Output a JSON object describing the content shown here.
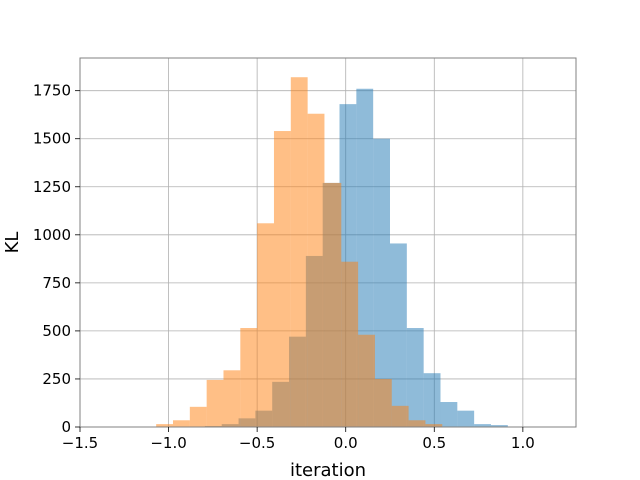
{
  "chart_data": {
    "type": "histogram",
    "xlabel": "iteration",
    "ylabel": "KL",
    "xlim": [
      -1.5,
      1.3
    ],
    "ylim": [
      0,
      1920
    ],
    "grid": true,
    "x_ticks": [
      -1.5,
      -1.0,
      -0.5,
      0.0,
      0.5,
      1.0
    ],
    "x_tick_labels": [
      "−1.5",
      "−1.0",
      "−0.5",
      "0.0",
      "0.5",
      "1.0"
    ],
    "y_ticks": [
      0,
      250,
      500,
      750,
      1000,
      1250,
      1500,
      1750
    ],
    "y_tick_labels": [
      "0",
      "250",
      "500",
      "750",
      "1000",
      "1250",
      "1500",
      "1750"
    ],
    "bins_alpha": 0.5,
    "series": [
      {
        "color": "#1f77b4",
        "bin_width": 0.095,
        "bin_starts": [
          -0.795,
          -0.7,
          -0.605,
          -0.51,
          -0.415,
          -0.32,
          -0.225,
          -0.13,
          -0.035,
          0.06,
          0.155,
          0.25,
          0.345,
          0.44,
          0.535,
          0.63,
          0.725,
          0.82
        ],
        "values": [
          5,
          15,
          45,
          85,
          235,
          470,
          890,
          1270,
          1680,
          1760,
          1500,
          955,
          515,
          280,
          130,
          85,
          15,
          10
        ]
      },
      {
        "color": "#ff7f0e",
        "bin_width": 0.095,
        "bin_starts": [
          -1.07,
          -0.975,
          -0.88,
          -0.785,
          -0.69,
          -0.595,
          -0.5,
          -0.405,
          -0.31,
          -0.215,
          -0.12,
          -0.025,
          0.07,
          0.165,
          0.26,
          0.355,
          0.45
        ],
        "values": [
          15,
          35,
          105,
          245,
          295,
          515,
          1060,
          1540,
          1820,
          1630,
          1270,
          860,
          480,
          250,
          110,
          35,
          15
        ]
      }
    ]
  }
}
